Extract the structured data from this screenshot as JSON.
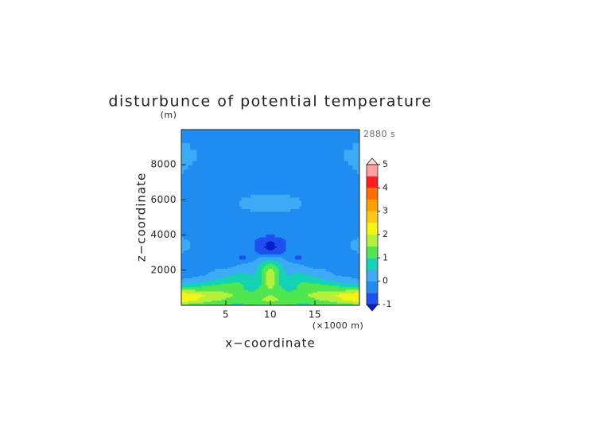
{
  "chart_data": {
    "type": "contour",
    "title": "disturbunce of potential temperature",
    "y_unit": "(m)",
    "x_unit": "(×1000 m)",
    "annotation": "2880 s",
    "x_label": "x−coordinate",
    "y_label": "z−coordinate",
    "xlim": [
      0,
      20
    ],
    "ylim": [
      0,
      10000
    ],
    "xticks": [
      5,
      10,
      15
    ],
    "yticks": [
      2000,
      4000,
      6000,
      8000
    ],
    "x": [
      0,
      1,
      2,
      3,
      4,
      5,
      6,
      7,
      8,
      9,
      10,
      11,
      12,
      13,
      14,
      15,
      16,
      17,
      18,
      19,
      20
    ],
    "y": [
      0,
      300,
      600,
      900,
      1200,
      1500,
      1800,
      2100,
      2400,
      2700,
      3000,
      3300,
      3600,
      3900,
      4500,
      5200,
      5800,
      6500,
      7500,
      8500,
      10000
    ],
    "z": [
      [
        1.2,
        1.1,
        1.0,
        0.9,
        0.8,
        0.8,
        0.8,
        0.8,
        0.9,
        1.0,
        1.1,
        1.0,
        0.9,
        0.8,
        0.8,
        0.8,
        0.8,
        0.9,
        1.0,
        1.1,
        1.2
      ],
      [
        2.3,
        2.1,
        1.9,
        1.7,
        1.5,
        1.4,
        1.3,
        1.3,
        1.4,
        1.5,
        1.6,
        1.5,
        1.4,
        1.3,
        1.3,
        1.4,
        1.5,
        1.7,
        1.9,
        2.1,
        2.3
      ],
      [
        2.4,
        2.3,
        2.1,
        2.0,
        1.9,
        1.7,
        1.5,
        1.3,
        1.3,
        1.4,
        1.5,
        1.4,
        1.3,
        1.3,
        1.5,
        1.7,
        1.9,
        2.0,
        2.1,
        2.3,
        2.4
      ],
      [
        1.4,
        1.4,
        1.4,
        1.4,
        1.4,
        1.3,
        1.2,
        1.0,
        0.9,
        1.1,
        1.5,
        1.1,
        0.9,
        1.0,
        1.2,
        1.3,
        1.4,
        1.4,
        1.4,
        1.4,
        1.4
      ],
      [
        0.5,
        0.6,
        0.7,
        0.9,
        1.0,
        1.1,
        1.1,
        1.0,
        0.7,
        1.0,
        1.9,
        1.0,
        0.7,
        1.0,
        1.1,
        1.1,
        1.0,
        0.9,
        0.7,
        0.6,
        0.5
      ],
      [
        0.0,
        0.1,
        0.2,
        0.3,
        0.5,
        0.7,
        0.9,
        0.9,
        0.6,
        1.0,
        2.1,
        1.0,
        0.6,
        0.9,
        0.9,
        0.7,
        0.5,
        0.3,
        0.2,
        0.1,
        0.0
      ],
      [
        -0.2,
        -0.2,
        -0.1,
        0.0,
        0.1,
        0.3,
        0.5,
        0.6,
        0.4,
        1.0,
        2.0,
        1.0,
        0.4,
        0.6,
        0.5,
        0.3,
        0.1,
        0.0,
        -0.1,
        -0.2,
        -0.2
      ],
      [
        -0.2,
        -0.2,
        -0.2,
        -0.1,
        0.0,
        0.0,
        0.1,
        0.2,
        0.2,
        0.9,
        1.6,
        0.9,
        0.2,
        0.2,
        0.1,
        0.0,
        0.0,
        -0.1,
        -0.2,
        -0.2,
        -0.2
      ],
      [
        -0.2,
        -0.2,
        -0.2,
        -0.2,
        -0.2,
        -0.2,
        -0.1,
        0.0,
        0.1,
        0.6,
        1.0,
        0.6,
        0.1,
        0.0,
        -0.1,
        -0.2,
        -0.2,
        -0.2,
        -0.2,
        -0.2,
        -0.2
      ],
      [
        -0.2,
        -0.2,
        -0.3,
        -0.3,
        -0.3,
        -0.3,
        -0.4,
        -0.7,
        -0.2,
        0.2,
        0.3,
        0.2,
        -0.2,
        -0.7,
        -0.4,
        -0.3,
        -0.3,
        -0.3,
        -0.3,
        -0.2,
        -0.2
      ],
      [
        0.0,
        -0.1,
        -0.2,
        -0.3,
        -0.3,
        -0.3,
        -0.3,
        -0.4,
        -0.3,
        -0.7,
        -0.9,
        -0.7,
        -0.3,
        -0.4,
        -0.3,
        -0.3,
        -0.3,
        -0.3,
        -0.2,
        -0.1,
        0.0
      ],
      [
        0.1,
        0.0,
        -0.2,
        -0.3,
        -0.3,
        -0.3,
        -0.3,
        -0.3,
        -0.4,
        -0.9,
        -1.2,
        -0.9,
        -0.4,
        -0.3,
        -0.3,
        -0.3,
        -0.3,
        -0.3,
        -0.2,
        0.0,
        0.1
      ],
      [
        0.1,
        0.0,
        -0.2,
        -0.3,
        -0.3,
        -0.3,
        -0.3,
        -0.3,
        -0.4,
        -0.9,
        -1.1,
        -0.9,
        -0.4,
        -0.3,
        -0.3,
        -0.3,
        -0.3,
        -0.3,
        -0.2,
        0.0,
        0.1
      ],
      [
        0.0,
        -0.1,
        -0.2,
        -0.3,
        -0.3,
        -0.3,
        -0.3,
        -0.3,
        -0.3,
        -0.5,
        -0.6,
        -0.5,
        -0.3,
        -0.3,
        -0.3,
        -0.3,
        -0.3,
        -0.3,
        -0.2,
        -0.1,
        0.0
      ],
      [
        -0.2,
        -0.2,
        -0.2,
        -0.2,
        -0.2,
        -0.2,
        -0.2,
        -0.2,
        -0.2,
        -0.2,
        -0.2,
        -0.2,
        -0.2,
        -0.2,
        -0.2,
        -0.2,
        -0.2,
        -0.2,
        -0.2,
        -0.2,
        -0.2
      ],
      [
        -0.2,
        -0.2,
        -0.2,
        -0.2,
        -0.2,
        -0.2,
        -0.2,
        -0.1,
        -0.1,
        -0.1,
        -0.1,
        -0.1,
        -0.1,
        -0.1,
        -0.2,
        -0.2,
        -0.2,
        -0.2,
        -0.2,
        -0.2,
        -0.2
      ],
      [
        -0.2,
        -0.2,
        -0.2,
        -0.2,
        -0.2,
        -0.2,
        -0.1,
        0.1,
        0.2,
        0.2,
        0.2,
        0.2,
        0.2,
        0.1,
        -0.1,
        -0.2,
        -0.2,
        -0.2,
        -0.2,
        -0.2,
        -0.2
      ],
      [
        -0.2,
        -0.2,
        -0.2,
        -0.2,
        -0.2,
        -0.2,
        -0.2,
        -0.1,
        -0.1,
        -0.1,
        -0.1,
        -0.1,
        -0.1,
        -0.1,
        -0.2,
        -0.2,
        -0.2,
        -0.2,
        -0.2,
        -0.2,
        -0.2
      ],
      [
        0.0,
        -0.1,
        -0.2,
        -0.2,
        -0.2,
        -0.2,
        -0.2,
        -0.2,
        -0.2,
        -0.2,
        -0.2,
        -0.2,
        -0.2,
        -0.2,
        -0.2,
        -0.2,
        -0.2,
        -0.2,
        -0.2,
        -0.1,
        0.0
      ],
      [
        0.2,
        0.1,
        0.0,
        -0.1,
        -0.2,
        -0.2,
        -0.2,
        -0.2,
        -0.2,
        -0.2,
        -0.2,
        -0.2,
        -0.2,
        -0.2,
        -0.2,
        -0.2,
        -0.2,
        -0.1,
        0.0,
        0.1,
        0.2
      ],
      [
        -0.1,
        -0.2,
        -0.2,
        -0.2,
        -0.2,
        -0.2,
        -0.2,
        -0.2,
        -0.2,
        -0.2,
        -0.2,
        -0.2,
        -0.2,
        -0.2,
        -0.2,
        -0.2,
        -0.2,
        -0.2,
        -0.2,
        -0.2,
        -0.1
      ]
    ],
    "levels": [
      -1,
      -0.5,
      0,
      0.5,
      1,
      1.5,
      2,
      2.5,
      3,
      3.5,
      4,
      4.5,
      5
    ],
    "colors": [
      "#0a1ec8",
      "#1e50f0",
      "#1e8cf0",
      "#3caaf5",
      "#14d2b4",
      "#50e650",
      "#b4f03c",
      "#f5f514",
      "#ffc814",
      "#ffa000",
      "#ff6e00",
      "#ff1e1e",
      "#ffa0a0",
      "#ffdcdc"
    ],
    "colorbar_ticks": [
      -1,
      0,
      1,
      2,
      3,
      4,
      5
    ]
  }
}
